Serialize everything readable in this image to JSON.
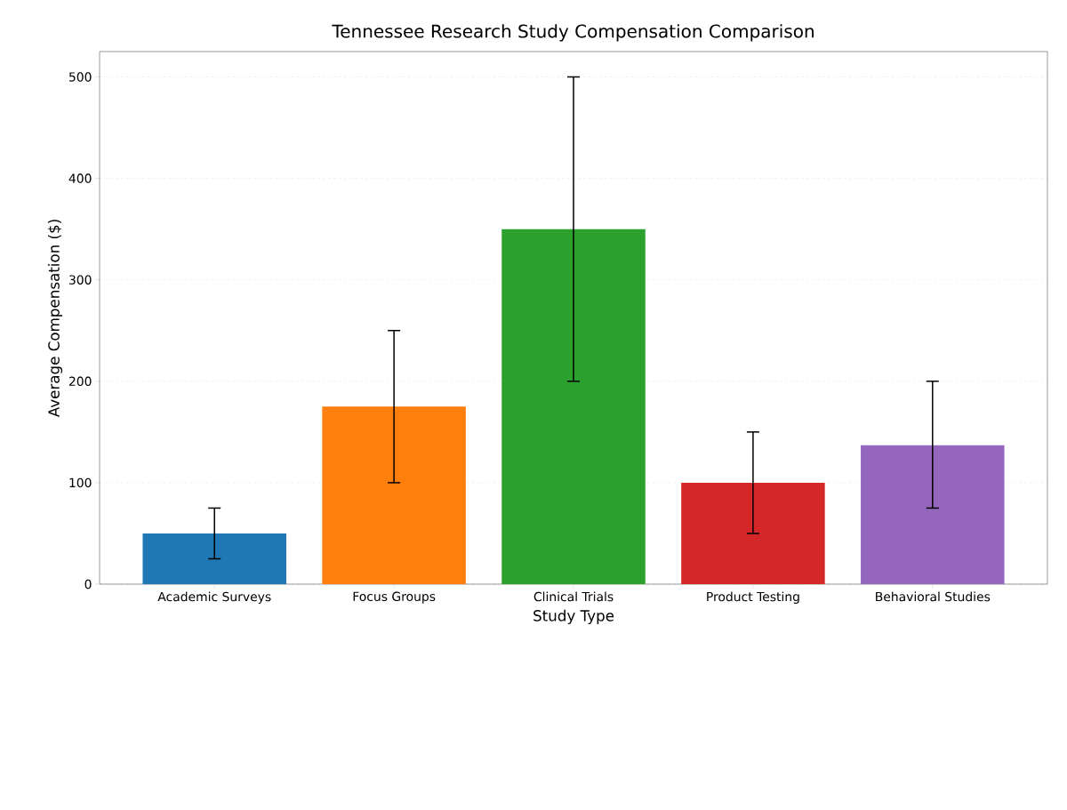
{
  "chart_data": {
    "type": "bar",
    "title": "Tennessee Research Study Compensation Comparison",
    "xlabel": "Study Type",
    "ylabel": "Average Compensation ($)",
    "categories": [
      "Academic Surveys",
      "Focus Groups",
      "Clinical Trials",
      "Product Testing",
      "Behavioral Studies"
    ],
    "values": [
      50,
      175,
      350,
      100,
      137
    ],
    "errors": [
      [
        25,
        75
      ],
      [
        100,
        250
      ],
      [
        200,
        500
      ],
      [
        50,
        150
      ],
      [
        75,
        200
      ]
    ],
    "colors": [
      "#1f77b4",
      "#ff7f0e",
      "#2ca02c",
      "#d62728",
      "#9467bd"
    ],
    "ylim": [
      0,
      525
    ],
    "yticks": [
      0,
      100,
      200,
      300,
      400,
      500
    ],
    "grid": "y"
  }
}
